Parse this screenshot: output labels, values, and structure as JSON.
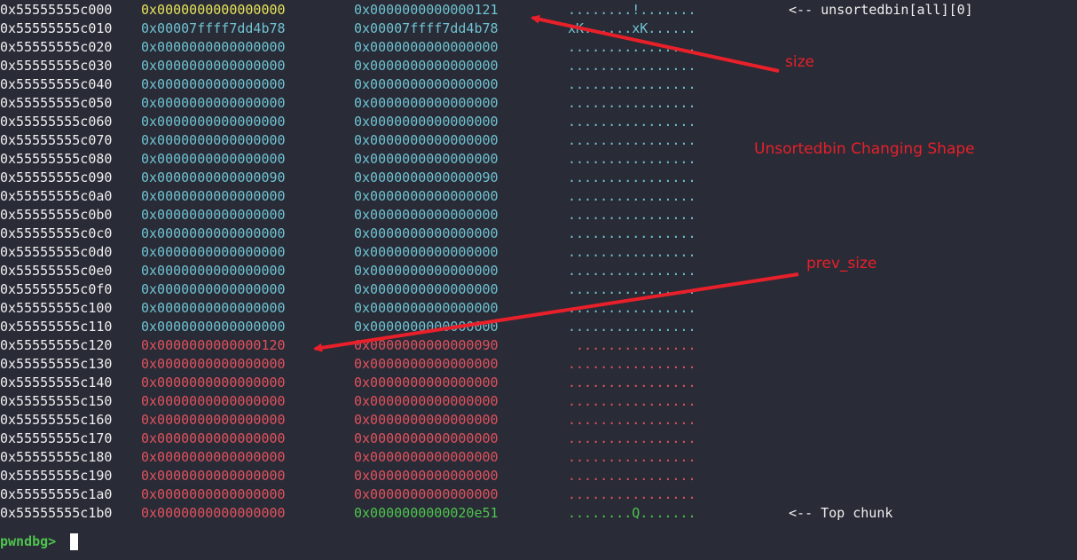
{
  "rows": [
    {
      "addr": "0x55555555c000",
      "v1": "0x0000000000000000",
      "v2": "0x0000000000000121",
      "ascii": "........!.......",
      "note": "<-- unsortedbin[all][0]",
      "c1": "c-yellow",
      "c2": "c-cyan",
      "c3": "c-cyan"
    },
    {
      "addr": "0x55555555c010",
      "v1": "0x00007ffff7dd4b78",
      "v2": "0x00007ffff7dd4b78",
      "ascii": "xK......xK......",
      "note": "",
      "c1": "c-cyan",
      "c2": "c-cyan",
      "c3": "c-cyan"
    },
    {
      "addr": "0x55555555c020",
      "v1": "0x0000000000000000",
      "v2": "0x0000000000000000",
      "ascii": "................",
      "note": "",
      "c1": "c-cyan",
      "c2": "c-cyan",
      "c3": "c-cyan"
    },
    {
      "addr": "0x55555555c030",
      "v1": "0x0000000000000000",
      "v2": "0x0000000000000000",
      "ascii": "................",
      "note": "",
      "c1": "c-cyan",
      "c2": "c-cyan",
      "c3": "c-cyan"
    },
    {
      "addr": "0x55555555c040",
      "v1": "0x0000000000000000",
      "v2": "0x0000000000000000",
      "ascii": "................",
      "note": "",
      "c1": "c-cyan",
      "c2": "c-cyan",
      "c3": "c-cyan"
    },
    {
      "addr": "0x55555555c050",
      "v1": "0x0000000000000000",
      "v2": "0x0000000000000000",
      "ascii": "................",
      "note": "",
      "c1": "c-cyan",
      "c2": "c-cyan",
      "c3": "c-cyan"
    },
    {
      "addr": "0x55555555c060",
      "v1": "0x0000000000000000",
      "v2": "0x0000000000000000",
      "ascii": "................",
      "note": "",
      "c1": "c-cyan",
      "c2": "c-cyan",
      "c3": "c-cyan"
    },
    {
      "addr": "0x55555555c070",
      "v1": "0x0000000000000000",
      "v2": "0x0000000000000000",
      "ascii": "................",
      "note": "",
      "c1": "c-cyan",
      "c2": "c-cyan",
      "c3": "c-cyan"
    },
    {
      "addr": "0x55555555c080",
      "v1": "0x0000000000000000",
      "v2": "0x0000000000000000",
      "ascii": "................",
      "note": "",
      "c1": "c-cyan",
      "c2": "c-cyan",
      "c3": "c-cyan"
    },
    {
      "addr": "0x55555555c090",
      "v1": "0x0000000000000090",
      "v2": "0x0000000000000090",
      "ascii": "................",
      "note": "",
      "c1": "c-cyan",
      "c2": "c-cyan",
      "c3": "c-cyan"
    },
    {
      "addr": "0x55555555c0a0",
      "v1": "0x0000000000000000",
      "v2": "0x0000000000000000",
      "ascii": "................",
      "note": "",
      "c1": "c-cyan",
      "c2": "c-cyan",
      "c3": "c-cyan"
    },
    {
      "addr": "0x55555555c0b0",
      "v1": "0x0000000000000000",
      "v2": "0x0000000000000000",
      "ascii": "................",
      "note": "",
      "c1": "c-cyan",
      "c2": "c-cyan",
      "c3": "c-cyan"
    },
    {
      "addr": "0x55555555c0c0",
      "v1": "0x0000000000000000",
      "v2": "0x0000000000000000",
      "ascii": "................",
      "note": "",
      "c1": "c-cyan",
      "c2": "c-cyan",
      "c3": "c-cyan"
    },
    {
      "addr": "0x55555555c0d0",
      "v1": "0x0000000000000000",
      "v2": "0x0000000000000000",
      "ascii": "................",
      "note": "",
      "c1": "c-cyan",
      "c2": "c-cyan",
      "c3": "c-cyan"
    },
    {
      "addr": "0x55555555c0e0",
      "v1": "0x0000000000000000",
      "v2": "0x0000000000000000",
      "ascii": "................",
      "note": "",
      "c1": "c-cyan",
      "c2": "c-cyan",
      "c3": "c-cyan"
    },
    {
      "addr": "0x55555555c0f0",
      "v1": "0x0000000000000000",
      "v2": "0x0000000000000000",
      "ascii": "................",
      "note": "",
      "c1": "c-cyan",
      "c2": "c-cyan",
      "c3": "c-cyan"
    },
    {
      "addr": "0x55555555c100",
      "v1": "0x0000000000000000",
      "v2": "0x0000000000000000",
      "ascii": "................",
      "note": "",
      "c1": "c-cyan",
      "c2": "c-cyan",
      "c3": "c-cyan"
    },
    {
      "addr": "0x55555555c110",
      "v1": "0x0000000000000000",
      "v2": "0x0000000000000000",
      "ascii": "................",
      "note": "",
      "c1": "c-cyan",
      "c2": "c-cyan",
      "c3": "c-cyan"
    },
    {
      "addr": "0x55555555c120",
      "v1": "0x0000000000000120",
      "v2": "0x0000000000000090",
      "ascii": " ...............",
      "note": "",
      "c1": "c-red",
      "c2": "c-red",
      "c3": "c-red"
    },
    {
      "addr": "0x55555555c130",
      "v1": "0x0000000000000000",
      "v2": "0x0000000000000000",
      "ascii": "................",
      "note": "",
      "c1": "c-red",
      "c2": "c-red",
      "c3": "c-red"
    },
    {
      "addr": "0x55555555c140",
      "v1": "0x0000000000000000",
      "v2": "0x0000000000000000",
      "ascii": "................",
      "note": "",
      "c1": "c-red",
      "c2": "c-red",
      "c3": "c-red"
    },
    {
      "addr": "0x55555555c150",
      "v1": "0x0000000000000000",
      "v2": "0x0000000000000000",
      "ascii": "................",
      "note": "",
      "c1": "c-red",
      "c2": "c-red",
      "c3": "c-red"
    },
    {
      "addr": "0x55555555c160",
      "v1": "0x0000000000000000",
      "v2": "0x0000000000000000",
      "ascii": "................",
      "note": "",
      "c1": "c-red",
      "c2": "c-red",
      "c3": "c-red"
    },
    {
      "addr": "0x55555555c170",
      "v1": "0x0000000000000000",
      "v2": "0x0000000000000000",
      "ascii": "................",
      "note": "",
      "c1": "c-red",
      "c2": "c-red",
      "c3": "c-red"
    },
    {
      "addr": "0x55555555c180",
      "v1": "0x0000000000000000",
      "v2": "0x0000000000000000",
      "ascii": "................",
      "note": "",
      "c1": "c-red",
      "c2": "c-red",
      "c3": "c-red"
    },
    {
      "addr": "0x55555555c190",
      "v1": "0x0000000000000000",
      "v2": "0x0000000000000000",
      "ascii": "................",
      "note": "",
      "c1": "c-red",
      "c2": "c-red",
      "c3": "c-red"
    },
    {
      "addr": "0x55555555c1a0",
      "v1": "0x0000000000000000",
      "v2": "0x0000000000000000",
      "ascii": "................",
      "note": "",
      "c1": "c-red",
      "c2": "c-red",
      "c3": "c-red"
    },
    {
      "addr": "0x55555555c1b0",
      "v1": "0x0000000000000000",
      "v2": "0x0000000000020e51",
      "ascii": "........Q.......",
      "note": "<-- Top chunk",
      "c1": "c-red",
      "c2": "c-green",
      "c3": "c-green"
    }
  ],
  "prompt": "pwndbg>",
  "annotations": {
    "size": "size",
    "caption": "Unsortedbin Changing Shape",
    "prev_size": "prev_size"
  },
  "colors": {
    "background": "#292b36",
    "cyan": "#6fc3d2",
    "yellow": "#e6e35a",
    "red": "#e0525e",
    "green": "#4ec44e",
    "annotation_red": "#e8202a"
  }
}
